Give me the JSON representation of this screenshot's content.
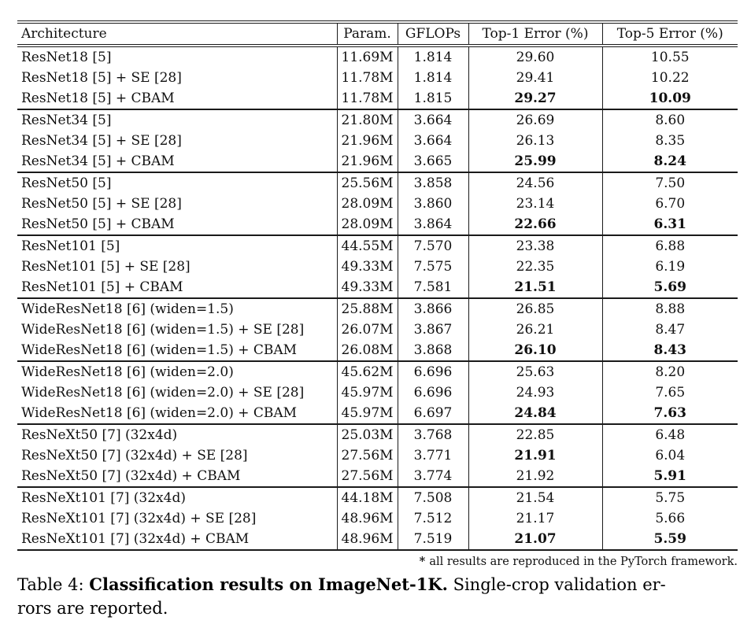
{
  "table": {
    "columns": [
      "Architecture",
      "Param.",
      "GFLOPs",
      "Top-1 Error (%)",
      "Top-5 Error (%)"
    ],
    "groups": [
      {
        "rows": [
          {
            "architecture": "ResNet18 [5]",
            "params": "11.69M",
            "gflops": "1.814",
            "top1": "29.60",
            "top1_bold": false,
            "top5": "10.55",
            "top5_bold": false
          },
          {
            "architecture": "ResNet18 [5] + SE [28]",
            "params": "11.78M",
            "gflops": "1.814",
            "top1": "29.41",
            "top1_bold": false,
            "top5": "10.22",
            "top5_bold": false
          },
          {
            "architecture": "ResNet18 [5] + CBAM",
            "params": "11.78M",
            "gflops": "1.815",
            "top1": "29.27",
            "top1_bold": true,
            "top5": "10.09",
            "top5_bold": true
          }
        ]
      },
      {
        "rows": [
          {
            "architecture": "ResNet34 [5]",
            "params": "21.80M",
            "gflops": "3.664",
            "top1": "26.69",
            "top1_bold": false,
            "top5": "8.60",
            "top5_bold": false
          },
          {
            "architecture": "ResNet34 [5] + SE [28]",
            "params": "21.96M",
            "gflops": "3.664",
            "top1": "26.13",
            "top1_bold": false,
            "top5": "8.35",
            "top5_bold": false
          },
          {
            "architecture": "ResNet34 [5] + CBAM",
            "params": "21.96M",
            "gflops": "3.665",
            "top1": "25.99",
            "top1_bold": true,
            "top5": "8.24",
            "top5_bold": true
          }
        ]
      },
      {
        "rows": [
          {
            "architecture": "ResNet50 [5]",
            "params": "25.56M",
            "gflops": "3.858",
            "top1": "24.56",
            "top1_bold": false,
            "top5": "7.50",
            "top5_bold": false
          },
          {
            "architecture": "ResNet50 [5] + SE [28]",
            "params": "28.09M",
            "gflops": "3.860",
            "top1": "23.14",
            "top1_bold": false,
            "top5": "6.70",
            "top5_bold": false
          },
          {
            "architecture": "ResNet50 [5] + CBAM",
            "params": "28.09M",
            "gflops": "3.864",
            "top1": "22.66",
            "top1_bold": true,
            "top5": "6.31",
            "top5_bold": true
          }
        ]
      },
      {
        "rows": [
          {
            "architecture": "ResNet101 [5]",
            "params": "44.55M",
            "gflops": "7.570",
            "top1": "23.38",
            "top1_bold": false,
            "top5": "6.88",
            "top5_bold": false
          },
          {
            "architecture": "ResNet101 [5] + SE [28]",
            "params": "49.33M",
            "gflops": "7.575",
            "top1": "22.35",
            "top1_bold": false,
            "top5": "6.19",
            "top5_bold": false
          },
          {
            "architecture": "ResNet101 [5] + CBAM",
            "params": "49.33M",
            "gflops": "7.581",
            "top1": "21.51",
            "top1_bold": true,
            "top5": "5.69",
            "top5_bold": true
          }
        ]
      },
      {
        "rows": [
          {
            "architecture": "WideResNet18 [6] (widen=1.5)",
            "params": "25.88M",
            "gflops": "3.866",
            "top1": "26.85",
            "top1_bold": false,
            "top5": "8.88",
            "top5_bold": false
          },
          {
            "architecture": "WideResNet18 [6] (widen=1.5) + SE [28]",
            "params": "26.07M",
            "gflops": "3.867",
            "top1": "26.21",
            "top1_bold": false,
            "top5": "8.47",
            "top5_bold": false
          },
          {
            "architecture": "WideResNet18 [6] (widen=1.5) + CBAM",
            "params": "26.08M",
            "gflops": "3.868",
            "top1": "26.10",
            "top1_bold": true,
            "top5": "8.43",
            "top5_bold": true
          }
        ]
      },
      {
        "rows": [
          {
            "architecture": "WideResNet18 [6] (widen=2.0)",
            "params": "45.62M",
            "gflops": "6.696",
            "top1": "25.63",
            "top1_bold": false,
            "top5": "8.20",
            "top5_bold": false
          },
          {
            "architecture": "WideResNet18 [6] (widen=2.0) + SE [28]",
            "params": "45.97M",
            "gflops": "6.696",
            "top1": "24.93",
            "top1_bold": false,
            "top5": "7.65",
            "top5_bold": false
          },
          {
            "architecture": "WideResNet18 [6] (widen=2.0) + CBAM",
            "params": "45.97M",
            "gflops": "6.697",
            "top1": "24.84",
            "top1_bold": true,
            "top5": "7.63",
            "top5_bold": true
          }
        ]
      },
      {
        "rows": [
          {
            "architecture": "ResNeXt50 [7] (32x4d)",
            "params": "25.03M",
            "gflops": "3.768",
            "top1": "22.85",
            "top1_bold": false,
            "top5": "6.48",
            "top5_bold": false
          },
          {
            "architecture": "ResNeXt50 [7] (32x4d) + SE [28]",
            "params": "27.56M",
            "gflops": "3.771",
            "top1": "21.91",
            "top1_bold": true,
            "top5": "6.04",
            "top5_bold": false
          },
          {
            "architecture": "ResNeXt50 [7] (32x4d) + CBAM",
            "params": "27.56M",
            "gflops": "3.774",
            "top1": "21.92",
            "top1_bold": false,
            "top5": "5.91",
            "top5_bold": true
          }
        ]
      },
      {
        "rows": [
          {
            "architecture": "ResNeXt101 [7] (32x4d)",
            "params": "44.18M",
            "gflops": "7.508",
            "top1": "21.54",
            "top1_bold": false,
            "top5": "5.75",
            "top5_bold": false
          },
          {
            "architecture": "ResNeXt101 [7] (32x4d) + SE [28]",
            "params": "48.96M",
            "gflops": "7.512",
            "top1": "21.17",
            "top1_bold": false,
            "top5": "5.66",
            "top5_bold": false
          },
          {
            "architecture": "ResNeXt101 [7] (32x4d) + CBAM",
            "params": "48.96M",
            "gflops": "7.519",
            "top1": "21.07",
            "top1_bold": true,
            "top5": "5.59",
            "top5_bold": true
          }
        ]
      }
    ]
  },
  "footnote": {
    "marker": "* ",
    "text": "all results are reproduced in the PyTorch framework."
  },
  "caption": {
    "label": "Table 4: ",
    "title": "Classification results on ImageNet-1K.",
    "text_line1": " Single-crop validation er-",
    "text_line2": "rors are reported."
  }
}
